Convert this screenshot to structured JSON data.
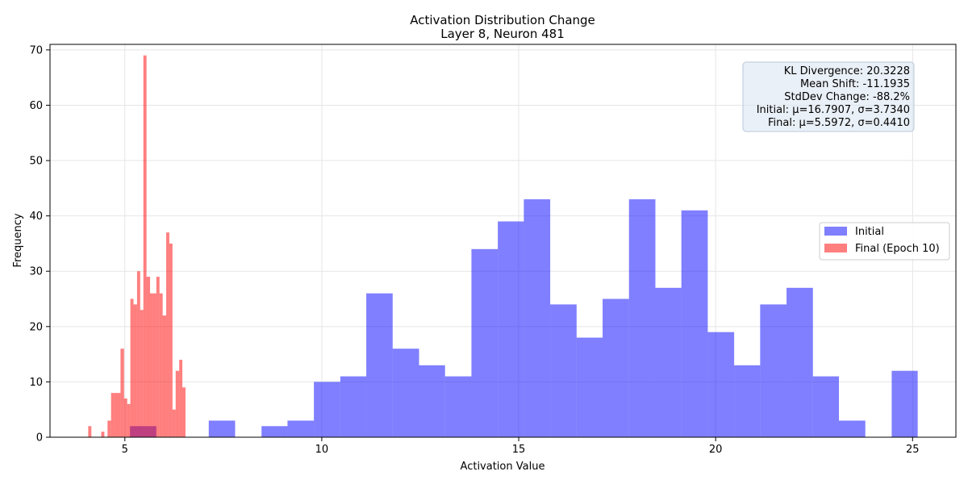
{
  "chart_data": {
    "type": "histogram",
    "title": "Activation Distribution Change",
    "subtitle": "Layer 8, Neuron 481",
    "xlabel": "Activation Value",
    "ylabel": "Frequency",
    "xlim": [
      3.1,
      26.1
    ],
    "ylim": [
      0,
      71
    ],
    "xticks": [
      5,
      10,
      15,
      20,
      25
    ],
    "yticks": [
      0,
      10,
      20,
      30,
      40,
      50,
      60,
      70
    ],
    "grid": true,
    "legend_position": "center-right",
    "series": [
      {
        "name": "Initial",
        "color": "#0000ff",
        "opacity": 0.5,
        "bins": [
          {
            "x0": 5.13,
            "x1": 5.8,
            "count": 2
          },
          {
            "x0": 7.13,
            "x1": 7.8,
            "count": 3
          },
          {
            "x0": 8.47,
            "x1": 9.13,
            "count": 2
          },
          {
            "x0": 9.13,
            "x1": 9.8,
            "count": 3
          },
          {
            "x0": 9.8,
            "x1": 10.47,
            "count": 10
          },
          {
            "x0": 10.47,
            "x1": 11.13,
            "count": 11
          },
          {
            "x0": 11.13,
            "x1": 11.8,
            "count": 26
          },
          {
            "x0": 11.8,
            "x1": 12.47,
            "count": 16
          },
          {
            "x0": 12.47,
            "x1": 13.13,
            "count": 13
          },
          {
            "x0": 13.13,
            "x1": 13.8,
            "count": 11
          },
          {
            "x0": 13.8,
            "x1": 14.47,
            "count": 34
          },
          {
            "x0": 14.47,
            "x1": 15.13,
            "count": 39
          },
          {
            "x0": 15.13,
            "x1": 15.8,
            "count": 43
          },
          {
            "x0": 15.8,
            "x1": 16.47,
            "count": 24
          },
          {
            "x0": 16.47,
            "x1": 17.13,
            "count": 18
          },
          {
            "x0": 17.13,
            "x1": 17.8,
            "count": 25
          },
          {
            "x0": 17.8,
            "x1": 18.47,
            "count": 43
          },
          {
            "x0": 18.47,
            "x1": 19.13,
            "count": 27
          },
          {
            "x0": 19.13,
            "x1": 19.8,
            "count": 41
          },
          {
            "x0": 19.8,
            "x1": 20.47,
            "count": 19
          },
          {
            "x0": 20.47,
            "x1": 21.13,
            "count": 13
          },
          {
            "x0": 21.13,
            "x1": 21.8,
            "count": 24
          },
          {
            "x0": 21.8,
            "x1": 22.47,
            "count": 27
          },
          {
            "x0": 22.47,
            "x1": 23.13,
            "count": 11
          },
          {
            "x0": 23.13,
            "x1": 23.8,
            "count": 3
          },
          {
            "x0": 24.47,
            "x1": 25.13,
            "count": 12
          }
        ]
      },
      {
        "name": "Final (Epoch 10)",
        "color": "#ff0000",
        "opacity": 0.5,
        "bins": [
          {
            "x0": 4.07,
            "x1": 4.15,
            "count": 2
          },
          {
            "x0": 4.4,
            "x1": 4.48,
            "count": 1
          },
          {
            "x0": 4.56,
            "x1": 4.65,
            "count": 3
          },
          {
            "x0": 4.65,
            "x1": 4.73,
            "count": 8
          },
          {
            "x0": 4.73,
            "x1": 4.81,
            "count": 8
          },
          {
            "x0": 4.81,
            "x1": 4.89,
            "count": 8
          },
          {
            "x0": 4.89,
            "x1": 4.98,
            "count": 16
          },
          {
            "x0": 4.98,
            "x1": 5.06,
            "count": 7
          },
          {
            "x0": 5.06,
            "x1": 5.14,
            "count": 6
          },
          {
            "x0": 5.14,
            "x1": 5.22,
            "count": 25
          },
          {
            "x0": 5.22,
            "x1": 5.31,
            "count": 24
          },
          {
            "x0": 5.31,
            "x1": 5.39,
            "count": 30
          },
          {
            "x0": 5.39,
            "x1": 5.47,
            "count": 23
          },
          {
            "x0": 5.47,
            "x1": 5.55,
            "count": 69
          },
          {
            "x0": 5.55,
            "x1": 5.64,
            "count": 29
          },
          {
            "x0": 5.64,
            "x1": 5.72,
            "count": 26
          },
          {
            "x0": 5.72,
            "x1": 5.8,
            "count": 26
          },
          {
            "x0": 5.8,
            "x1": 5.88,
            "count": 29
          },
          {
            "x0": 5.88,
            "x1": 5.96,
            "count": 26
          },
          {
            "x0": 5.96,
            "x1": 6.05,
            "count": 22
          },
          {
            "x0": 6.05,
            "x1": 6.13,
            "count": 37
          },
          {
            "x0": 6.13,
            "x1": 6.21,
            "count": 35
          },
          {
            "x0": 6.21,
            "x1": 6.29,
            "count": 5
          },
          {
            "x0": 6.29,
            "x1": 6.38,
            "count": 12
          },
          {
            "x0": 6.38,
            "x1": 6.46,
            "count": 14
          },
          {
            "x0": 6.46,
            "x1": 6.54,
            "count": 9
          }
        ]
      }
    ],
    "annotation": {
      "lines": [
        "KL Divergence: 20.3228",
        "Mean Shift: -11.1935",
        "StdDev Change: -88.2%",
        "Initial: μ=16.7907, σ=3.7340",
        "Final: μ=5.5972, σ=0.4410"
      ]
    }
  }
}
